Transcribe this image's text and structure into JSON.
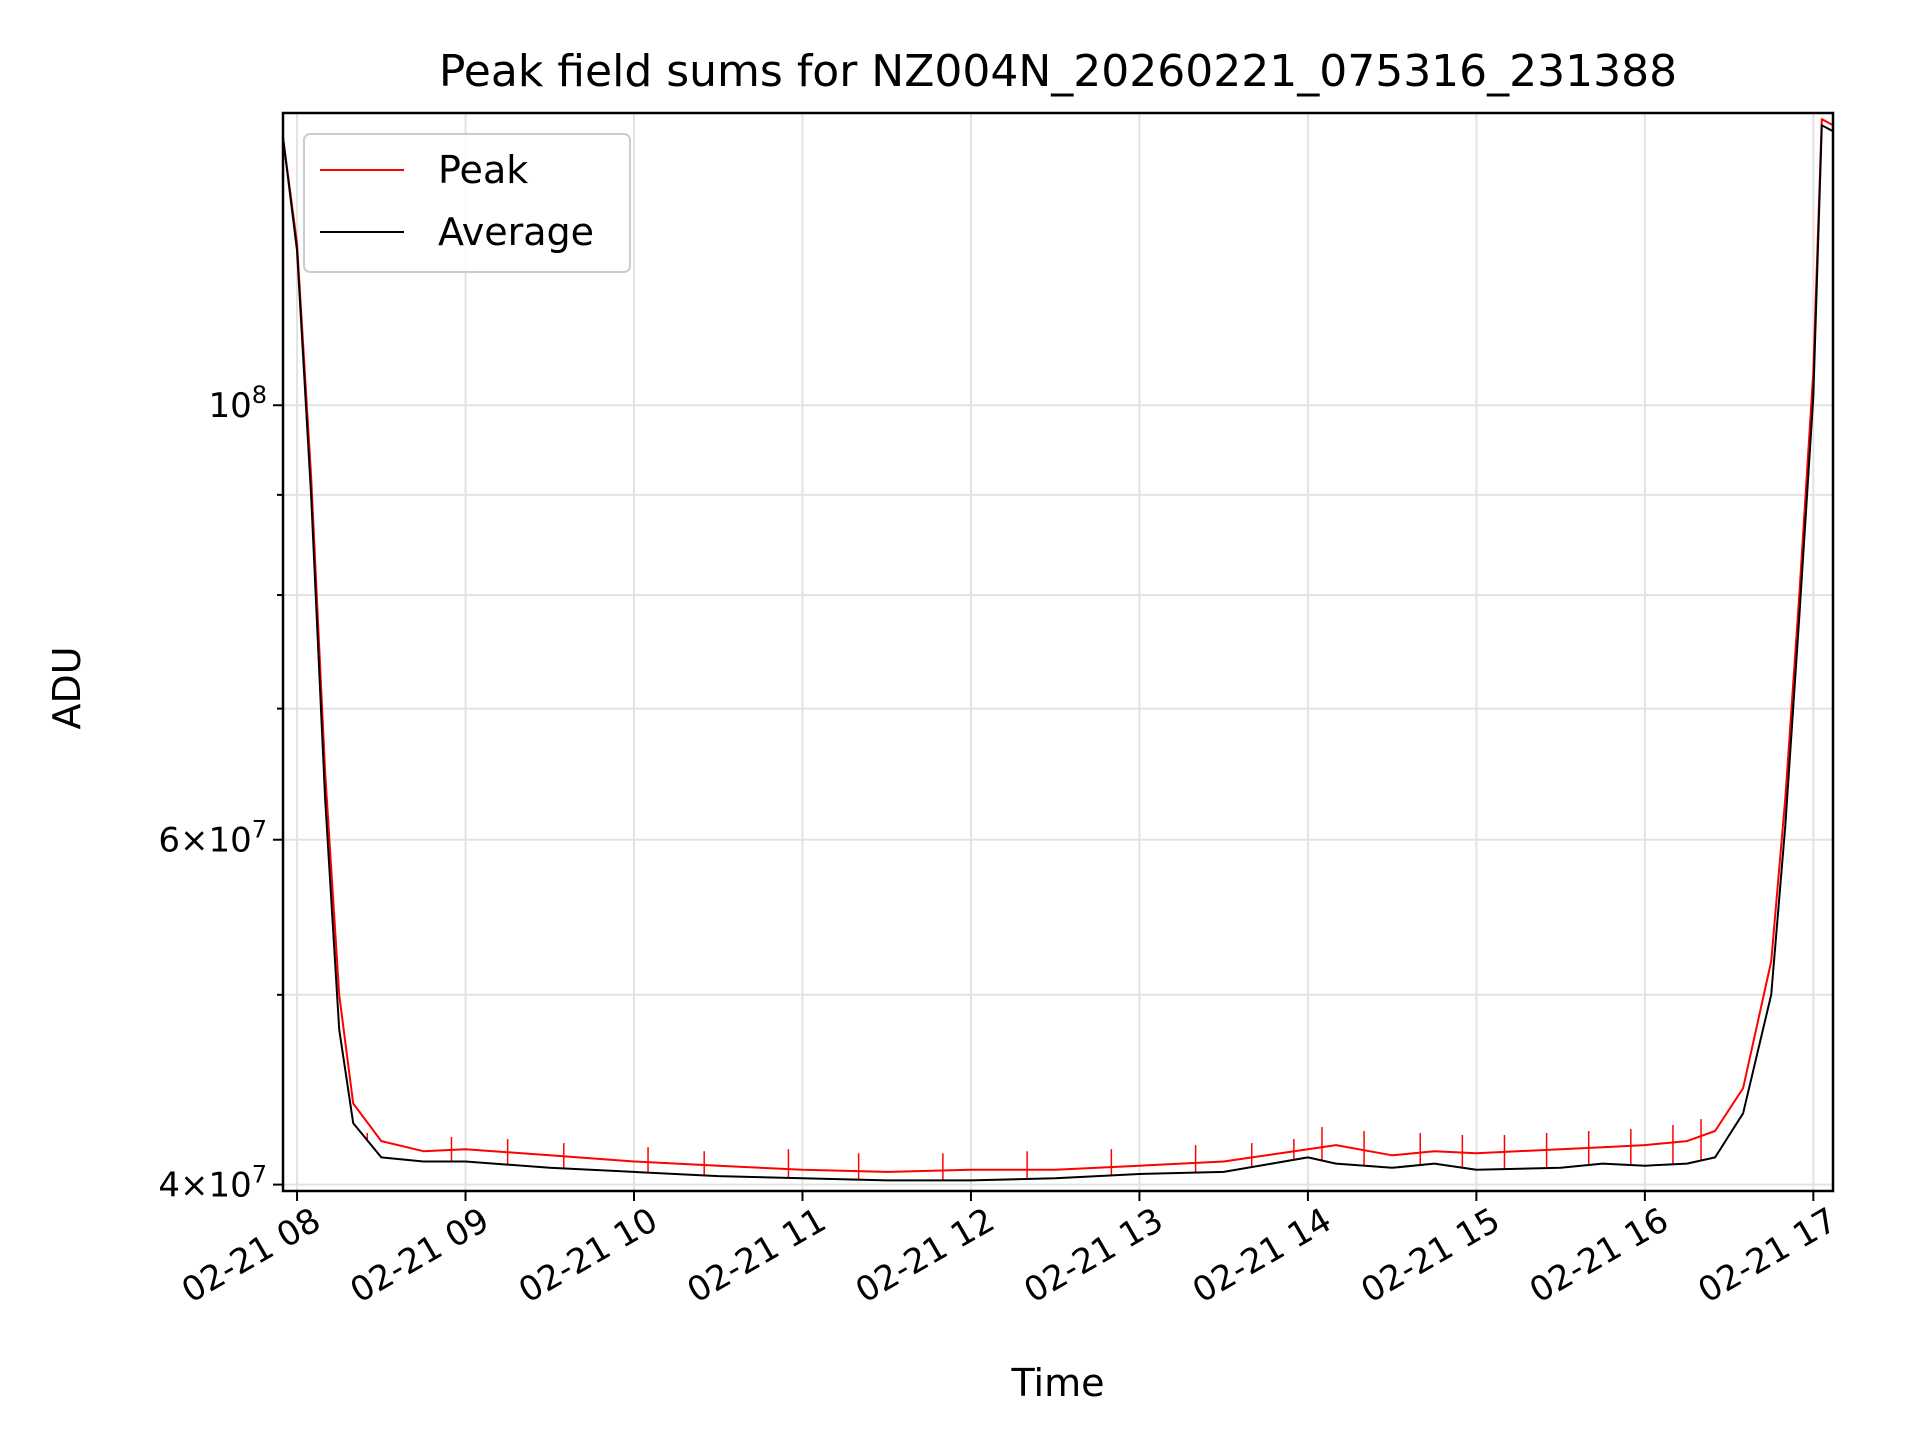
{
  "chart_data": {
    "type": "line",
    "title": "Peak field sums for NZ004N_20260221_075316_231388",
    "xlabel": "Time",
    "ylabel": "ADU",
    "y_scale": "log",
    "ylim": [
      39700000,
      141000000
    ],
    "xlim": [
      "2026-02-21 07:55",
      "2026-02-21 17:07"
    ],
    "x_ticks": [
      {
        "value": "2026-02-21 08:00",
        "label": "02-21 08"
      },
      {
        "value": "2026-02-21 09:00",
        "label": "02-21 09"
      },
      {
        "value": "2026-02-21 10:00",
        "label": "02-21 10"
      },
      {
        "value": "2026-02-21 11:00",
        "label": "02-21 11"
      },
      {
        "value": "2026-02-21 12:00",
        "label": "02-21 12"
      },
      {
        "value": "2026-02-21 13:00",
        "label": "02-21 13"
      },
      {
        "value": "2026-02-21 14:00",
        "label": "02-21 14"
      },
      {
        "value": "2026-02-21 15:00",
        "label": "02-21 15"
      },
      {
        "value": "2026-02-21 16:00",
        "label": "02-21 16"
      },
      {
        "value": "2026-02-21 17:00",
        "label": "02-21 17"
      }
    ],
    "y_major_ticks": [
      {
        "value": 40000000,
        "base": "4",
        "exp": "7"
      },
      {
        "value": 60000000,
        "base": "6",
        "exp": "7"
      },
      {
        "value": 100000000,
        "base": "",
        "exp": "8"
      }
    ],
    "y_minor_ticks": [
      50000000,
      70000000,
      80000000,
      90000000
    ],
    "grid": true,
    "legend": {
      "placement": "upper-left",
      "entries": [
        "Peak",
        "Average"
      ]
    },
    "series": [
      {
        "name": "Peak",
        "color": "#ff0000",
        "x": [
          "2026-02-21 07:55",
          "2026-02-21 08:00",
          "2026-02-21 08:05",
          "2026-02-21 08:10",
          "2026-02-21 08:15",
          "2026-02-21 08:20",
          "2026-02-21 08:30",
          "2026-02-21 08:45",
          "2026-02-21 09:00",
          "2026-02-21 09:30",
          "2026-02-21 10:00",
          "2026-02-21 10:30",
          "2026-02-21 11:00",
          "2026-02-21 11:30",
          "2026-02-21 12:00",
          "2026-02-21 12:30",
          "2026-02-21 13:00",
          "2026-02-21 13:30",
          "2026-02-21 14:00",
          "2026-02-21 14:10",
          "2026-02-21 14:30",
          "2026-02-21 14:45",
          "2026-02-21 15:00",
          "2026-02-21 15:30",
          "2026-02-21 15:45",
          "2026-02-21 16:00",
          "2026-02-21 16:15",
          "2026-02-21 16:25",
          "2026-02-21 16:35",
          "2026-02-21 16:45",
          "2026-02-21 16:50",
          "2026-02-21 16:55",
          "2026-02-21 17:00",
          "2026-02-21 17:03",
          "2026-02-21 17:07"
        ],
        "y": [
          137000000,
          121000000,
          92000000,
          65000000,
          50000000,
          44000000,
          42100000,
          41600000,
          41700000,
          41400000,
          41100000,
          40900000,
          40700000,
          40600000,
          40700000,
          40700000,
          40900000,
          41100000,
          41700000,
          41900000,
          41400000,
          41600000,
          41500000,
          41700000,
          41800000,
          41900000,
          42100000,
          42600000,
          44800000,
          52000000,
          63000000,
          80000000,
          104000000,
          140000000,
          139000000
        ]
      },
      {
        "name": "Average",
        "color": "#000000",
        "x": [
          "2026-02-21 07:55",
          "2026-02-21 08:00",
          "2026-02-21 08:05",
          "2026-02-21 08:10",
          "2026-02-21 08:15",
          "2026-02-21 08:20",
          "2026-02-21 08:30",
          "2026-02-21 08:45",
          "2026-02-21 09:00",
          "2026-02-21 09:30",
          "2026-02-21 10:00",
          "2026-02-21 10:30",
          "2026-02-21 11:00",
          "2026-02-21 11:30",
          "2026-02-21 12:00",
          "2026-02-21 12:30",
          "2026-02-21 13:00",
          "2026-02-21 13:30",
          "2026-02-21 14:00",
          "2026-02-21 14:10",
          "2026-02-21 14:30",
          "2026-02-21 14:45",
          "2026-02-21 15:00",
          "2026-02-21 15:30",
          "2026-02-21 15:45",
          "2026-02-21 16:00",
          "2026-02-21 16:15",
          "2026-02-21 16:25",
          "2026-02-21 16:35",
          "2026-02-21 16:45",
          "2026-02-21 16:50",
          "2026-02-21 16:55",
          "2026-02-21 17:00",
          "2026-02-21 17:03",
          "2026-02-21 17:07"
        ],
        "y": [
          137000000,
          120000000,
          90000000,
          63000000,
          48000000,
          43000000,
          41300000,
          41100000,
          41100000,
          40800000,
          40600000,
          40400000,
          40300000,
          40200000,
          40200000,
          40300000,
          40500000,
          40600000,
          41300000,
          41000000,
          40800000,
          41000000,
          40700000,
          40800000,
          41000000,
          40900000,
          41000000,
          41300000,
          43500000,
          50000000,
          61000000,
          78000000,
          101000000,
          139000000,
          138000000
        ]
      }
    ],
    "spikes": {
      "series": "Peak",
      "x": [
        "2026-02-21 08:25",
        "2026-02-21 08:55",
        "2026-02-21 09:15",
        "2026-02-21 09:35",
        "2026-02-21 10:05",
        "2026-02-21 10:25",
        "2026-02-21 10:55",
        "2026-02-21 11:20",
        "2026-02-21 11:50",
        "2026-02-21 12:20",
        "2026-02-21 12:50",
        "2026-02-21 13:20",
        "2026-02-21 13:40",
        "2026-02-21 13:55",
        "2026-02-21 14:05",
        "2026-02-21 14:20",
        "2026-02-21 14:40",
        "2026-02-21 14:55",
        "2026-02-21 15:10",
        "2026-02-21 15:25",
        "2026-02-21 15:40",
        "2026-02-21 15:55",
        "2026-02-21 16:10",
        "2026-02-21 16:20"
      ],
      "y": [
        42500000,
        42300000,
        42200000,
        42000000,
        41800000,
        41600000,
        41700000,
        41500000,
        41500000,
        41600000,
        41700000,
        41900000,
        42000000,
        42200000,
        42800000,
        42600000,
        42500000,
        42400000,
        42400000,
        42500000,
        42600000,
        42700000,
        42900000,
        43200000
      ]
    }
  }
}
